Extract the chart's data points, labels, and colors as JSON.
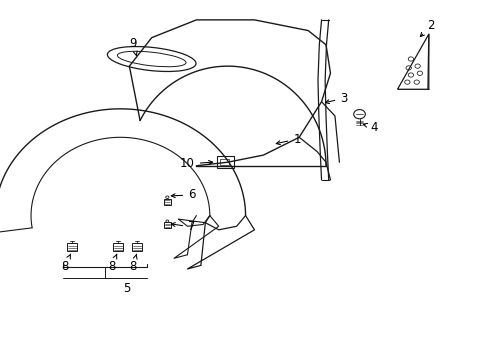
{
  "background": "#ffffff",
  "line_color": "#1a1a1a",
  "label_color": "#000000",
  "figsize": [
    4.89,
    3.6
  ],
  "dpi": 100
}
